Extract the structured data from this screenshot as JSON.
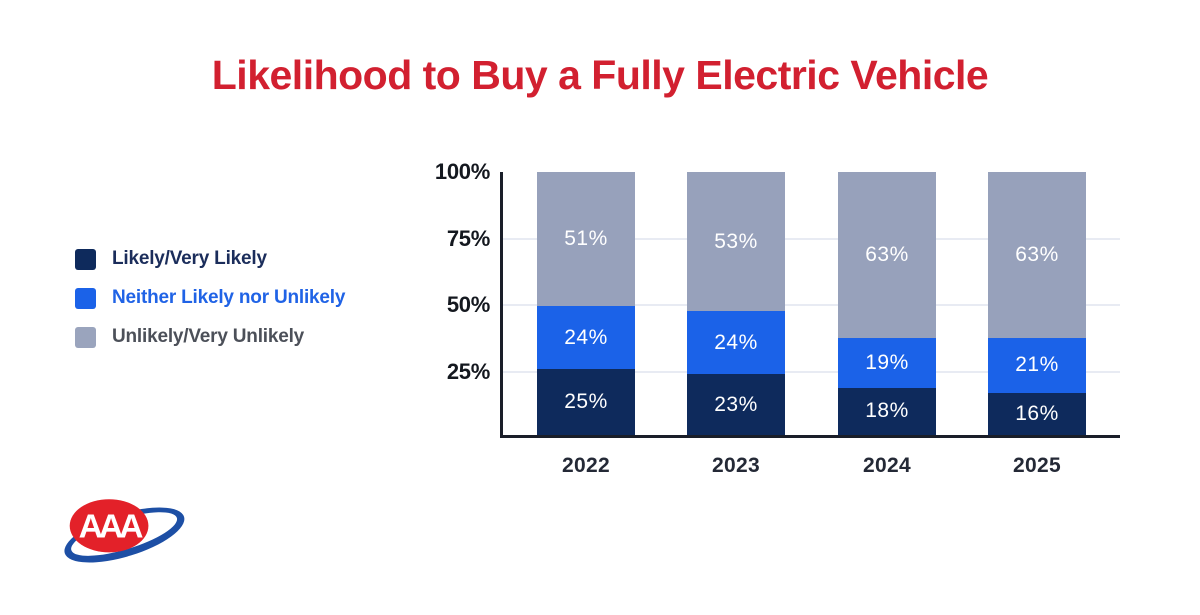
{
  "title": {
    "text": "Likelihood to Buy a Fully Electric Vehicle",
    "color": "#d22030"
  },
  "legend": {
    "items": [
      {
        "label": "Likely/Very Likely",
        "swatch": "#0e2a5c",
        "text_color": "#1b2d5b"
      },
      {
        "label": "Neither Likely nor Unlikely",
        "swatch": "#1b62e8",
        "text_color": "#2063e6"
      },
      {
        "label": "Unlikely/Very Unlikely",
        "swatch": "#9aa4bd",
        "text_color": "#4c5059"
      }
    ]
  },
  "chart_data": {
    "type": "bar",
    "subtype": "stacked-vertical",
    "title": "Likelihood to Buy a Fully Electric Vehicle",
    "categories": [
      "2022",
      "2023",
      "2024",
      "2025"
    ],
    "series": [
      {
        "name": "Likely/Very Likely",
        "color": "#0e2a5c",
        "values": [
          25,
          23,
          18,
          16
        ]
      },
      {
        "name": "Neither Likely nor Unlikely",
        "color": "#1b62e8",
        "values": [
          24,
          24,
          19,
          21
        ]
      },
      {
        "name": "Unlikely/Very Unlikely",
        "color": "#97a1bb",
        "values": [
          51,
          53,
          63,
          63
        ]
      }
    ],
    "value_label_format": "{v}%",
    "y_ticks": [
      100,
      75,
      50,
      25
    ],
    "y_tick_format": "{v}%",
    "ylim": [
      0,
      100
    ],
    "grid": true,
    "legend_position": "left",
    "axis_color": "#1a1e29",
    "gridline_color": "#e8ebf3"
  },
  "logo": {
    "name": "AAA logo",
    "letters": "AAA",
    "oval_color": "#e32129",
    "swoosh_color": "#1d4fa5"
  }
}
